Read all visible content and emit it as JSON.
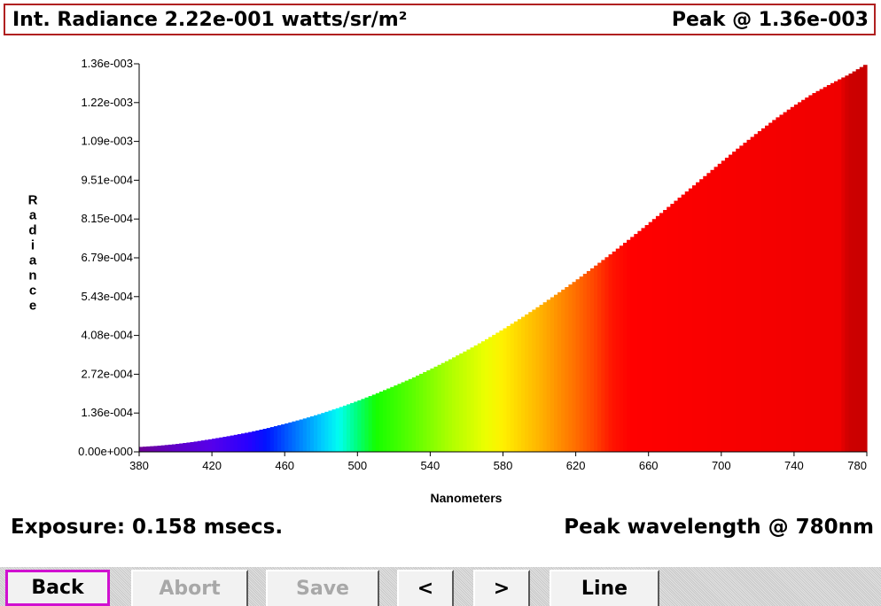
{
  "header": {
    "left_text": "Int. Radiance 2.22e-001 watts/sr/m²",
    "right_text": "Peak @ 1.36e-003"
  },
  "info": {
    "exposure": "Exposure: 0.158 msecs.",
    "peak": "Peak wavelength @ 780nm"
  },
  "buttons": [
    {
      "name": "back-button",
      "label": "Back",
      "state": "focused"
    },
    {
      "name": "abort-button",
      "label": "Abort",
      "state": "disabled"
    },
    {
      "name": "save-button",
      "label": "Save",
      "state": "disabled"
    },
    {
      "name": "prev-button",
      "label": "<",
      "state": "enabled"
    },
    {
      "name": "next-button",
      "label": ">",
      "state": "enabled"
    },
    {
      "name": "line-button",
      "label": "Line",
      "state": "enabled"
    }
  ],
  "chart_data": {
    "type": "area",
    "xlabel": "Nanometers",
    "ylabel": "Radiance",
    "xlim": [
      380,
      780
    ],
    "ylim": [
      0,
      0.00136
    ],
    "x_ticks": [
      "380",
      "420",
      "460",
      "500",
      "540",
      "580",
      "620",
      "660",
      "700",
      "740",
      "780"
    ],
    "y_ticks": [
      "0.00e+000",
      "1.36e-004",
      "2.72e-004",
      "4.08e-004",
      "5.43e-004",
      "6.79e-004",
      "8.15e-004",
      "9.51e-004",
      "1.09e-003",
      "1.22e-003",
      "1.36e-003"
    ],
    "grid": false,
    "legend": "none",
    "fill": "spectral colors by wavelength",
    "x": [
      380,
      390,
      400,
      410,
      420,
      430,
      440,
      450,
      460,
      470,
      480,
      490,
      500,
      510,
      520,
      530,
      540,
      550,
      560,
      570,
      580,
      590,
      600,
      610,
      620,
      630,
      640,
      650,
      660,
      670,
      680,
      690,
      700,
      710,
      720,
      730,
      740,
      750,
      760,
      770,
      780
    ],
    "values": [
      1.7e-05,
      2.1e-05,
      2.7e-05,
      3.5e-05,
      4.5e-05,
      5.6e-05,
      6.8e-05,
      8.2e-05,
      9.8e-05,
      0.000115,
      0.000134,
      0.000155,
      0.000178,
      0.000203,
      0.00023,
      0.000258,
      0.000289,
      0.000321,
      0.000355,
      0.000391,
      0.000429,
      0.000469,
      0.000511,
      0.000555,
      0.0006,
      0.000648,
      0.000697,
      0.000748,
      0.0008,
      0.000853,
      0.000907,
      0.000961,
      0.001015,
      0.001068,
      0.001119,
      0.001168,
      0.001213,
      0.001254,
      0.001289,
      0.001322,
      0.00136
    ]
  }
}
